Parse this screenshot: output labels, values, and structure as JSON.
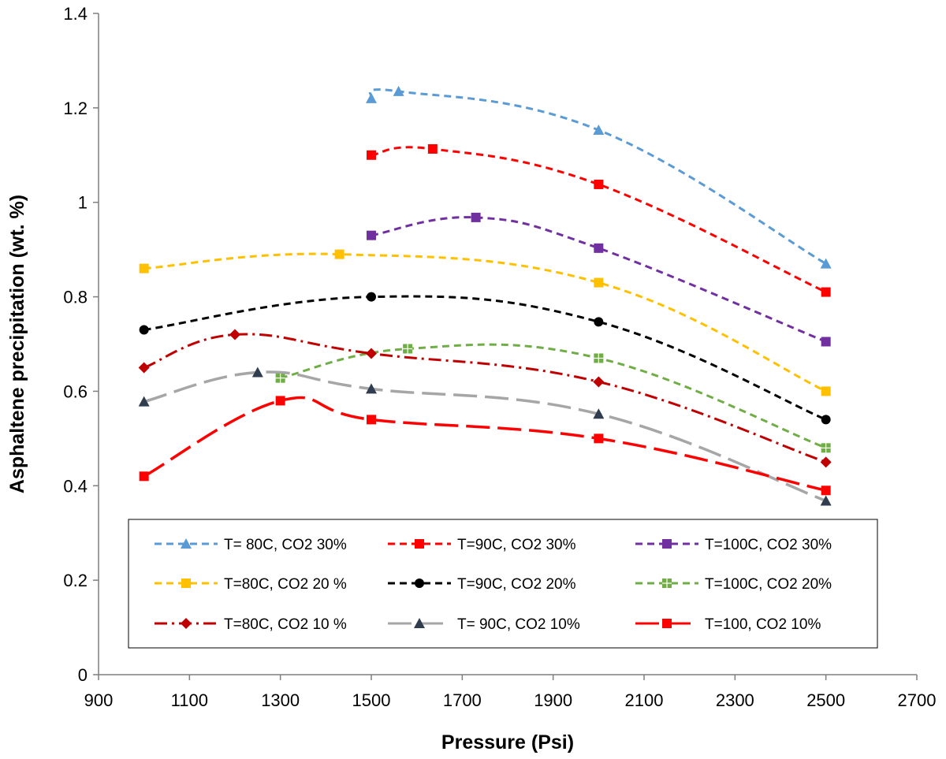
{
  "chart_data": {
    "type": "line",
    "title": "",
    "xlabel": "Pressure (Psi)",
    "ylabel": "Asphaltene precipitation (wt. %)",
    "xlim": [
      900,
      2700
    ],
    "ylim": [
      0,
      1.4
    ],
    "xticks": [
      "900",
      "1100",
      "1300",
      "1500",
      "1700",
      "1900",
      "2100",
      "2300",
      "2500",
      "2700"
    ],
    "yticks": [
      "0",
      "0.2",
      "0.4",
      "0.6",
      "0.8",
      "1",
      "1.2",
      "1.4"
    ],
    "grid": false,
    "legend_position": "bottom-inside",
    "series": [
      {
        "name": "T= 80C, CO2 30%",
        "color": "#5b9bd5",
        "marker": "triangle",
        "dash": "dashed",
        "x": [
          1500,
          1560,
          2000,
          2500
        ],
        "y": [
          1.22,
          1.235,
          1.153,
          0.87
        ]
      },
      {
        "name": "T=90C, CO2 30%",
        "color": "#ff0000",
        "marker": "square",
        "dash": "dashed",
        "x": [
          1500,
          1635,
          2000,
          2500
        ],
        "y": [
          1.1,
          1.113,
          1.038,
          0.81
        ]
      },
      {
        "name": "T=100C, CO2 30%",
        "color": "#7030a0",
        "marker": "square",
        "dash": "dashed",
        "x": [
          1500,
          1730,
          2000,
          2500
        ],
        "y": [
          0.93,
          0.968,
          0.903,
          0.705
        ]
      },
      {
        "name": "T=80C, CO2 20 %",
        "color": "#ffc000",
        "marker": "square",
        "dash": "dashed",
        "x": [
          1000,
          1430,
          2000,
          2500
        ],
        "y": [
          0.86,
          0.89,
          0.83,
          0.6
        ]
      },
      {
        "name": "T=90C, CO2 20%",
        "color": "#000000",
        "marker": "circle",
        "dash": "dashed",
        "x": [
          1000,
          1500,
          2000,
          2500
        ],
        "y": [
          0.73,
          0.8,
          0.747,
          0.54
        ]
      },
      {
        "name": "T=100C, CO2 20%",
        "color": "#70ad47",
        "marker": "square-grid",
        "dash": "dashed",
        "x": [
          1300,
          1580,
          2000,
          2500
        ],
        "y": [
          0.628,
          0.69,
          0.67,
          0.48
        ]
      },
      {
        "name": "T=80C, CO2 10 %",
        "color": "#c00000",
        "marker": "diamond",
        "dash": "dashdot",
        "x": [
          1000,
          1200,
          1500,
          2000,
          2500
        ],
        "y": [
          0.65,
          0.72,
          0.68,
          0.62,
          0.45
        ]
      },
      {
        "name": "T= 90C, CO2 10%",
        "color": "#a6a6a6",
        "marker": "triangle-dark",
        "dash": "longdash",
        "x": [
          1000,
          1250,
          1500,
          2000,
          2500
        ],
        "y": [
          0.578,
          0.64,
          0.605,
          0.552,
          0.368
        ]
      },
      {
        "name": "T=100, CO2 10%",
        "color": "#ff0000",
        "marker": "square",
        "dash": "longdash",
        "x": [
          1000,
          1300,
          1500,
          2000,
          2500
        ],
        "y": [
          0.42,
          0.58,
          0.54,
          0.5,
          0.39
        ]
      }
    ]
  }
}
